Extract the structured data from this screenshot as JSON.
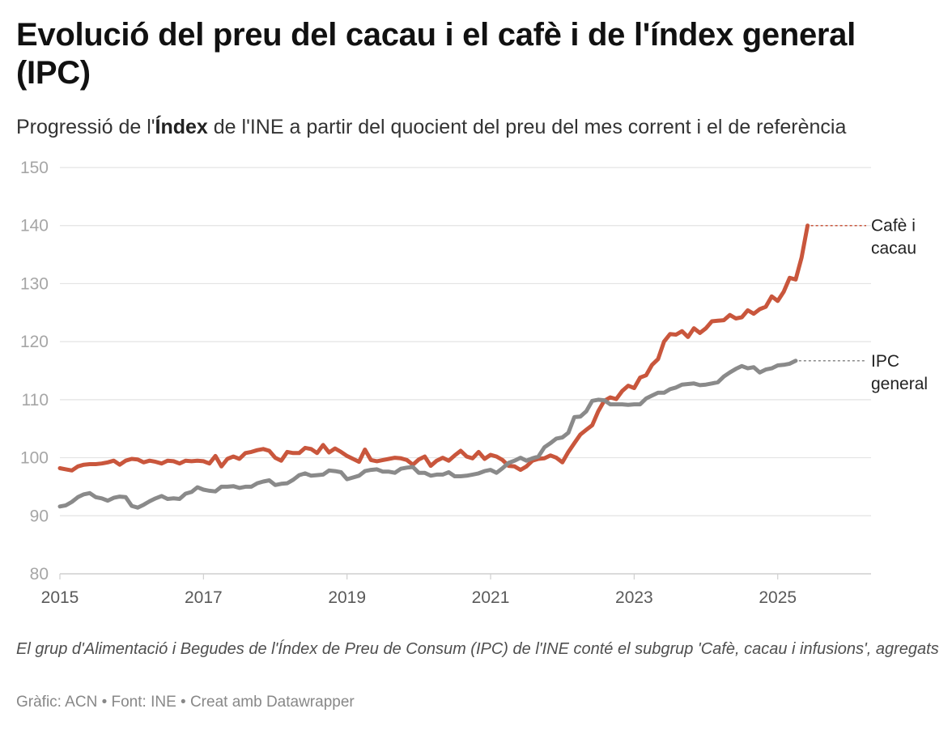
{
  "title": "Evolució del preu del cacau i el cafè i de l'índex general (IPC)",
  "subtitle": {
    "before": "Progressió de l'",
    "bold": "Índex",
    "after": " de l'INE a partir del quocient del preu del mes corrent i el de referència"
  },
  "note": "El grup d'Alimentació i Begudes de l'Índex de Preu de Consum (IPC) de l'INE conté el subgrup 'Cafè, cacau i infusions', agregats",
  "credits": "Gràfic: ACN • Font: INE • Creat amb Datawrapper",
  "chart_data": {
    "type": "line",
    "ylim": [
      80,
      150
    ],
    "yticks": [
      80,
      90,
      100,
      110,
      120,
      130,
      140,
      150
    ],
    "xlim": [
      2015,
      2026.3
    ],
    "xticks": [
      2015,
      2017,
      2019,
      2021,
      2023,
      2025
    ],
    "grid": true,
    "legend": "direct labels at line ends",
    "series": [
      {
        "name": "Cafè i cacau",
        "label_lines": [
          "Cafè i",
          "cacau"
        ],
        "color": "#c9563c",
        "start": 2015.0,
        "step": 0.08333,
        "values": [
          98.2,
          98.0,
          97.8,
          98.5,
          98.8,
          98.9,
          98.9,
          99.0,
          99.2,
          99.5,
          98.8,
          99.5,
          99.8,
          99.7,
          99.2,
          99.5,
          99.3,
          99.0,
          99.5,
          99.4,
          99.0,
          99.5,
          99.4,
          99.5,
          99.4,
          99.0,
          100.3,
          98.5,
          99.8,
          100.2,
          99.8,
          100.8,
          101.0,
          101.3,
          101.5,
          101.2,
          100.0,
          99.5,
          101.0,
          100.8,
          100.8,
          101.7,
          101.5,
          100.8,
          102.2,
          100.9,
          101.6,
          101.0,
          100.3,
          99.8,
          99.3,
          101.4,
          99.6,
          99.4,
          99.6,
          99.8,
          100.0,
          99.9,
          99.6,
          98.8,
          99.7,
          100.2,
          98.6,
          99.5,
          100.0,
          99.5,
          100.4,
          101.2,
          100.2,
          99.9,
          101.0,
          99.8,
          100.5,
          100.2,
          99.6,
          98.6,
          98.5,
          97.9,
          98.5,
          99.5,
          99.8,
          99.9,
          100.4,
          100.0,
          99.2,
          101.0,
          102.5,
          104.0,
          104.8,
          105.6,
          108.0,
          109.8,
          110.4,
          110.1,
          111.5,
          112.4,
          112.0,
          113.8,
          114.2,
          116.0,
          117.0,
          120.0,
          121.3,
          121.2,
          121.8,
          120.8,
          122.3,
          121.5,
          122.3,
          123.5,
          123.6,
          123.7,
          124.6,
          124.0,
          124.2,
          125.4,
          124.8,
          125.6,
          126.0,
          127.8,
          127.0,
          128.6,
          131.0,
          130.7,
          134.5,
          140.0
        ]
      },
      {
        "name": "IPC general",
        "label_lines": [
          "IPC",
          "general"
        ],
        "color": "#8a8a8a",
        "start": 2015.0,
        "step": 0.08333,
        "values": [
          91.6,
          91.8,
          92.4,
          93.2,
          93.7,
          93.9,
          93.2,
          93.0,
          92.6,
          93.1,
          93.3,
          93.2,
          91.7,
          91.4,
          91.9,
          92.5,
          93.0,
          93.4,
          92.9,
          93.0,
          92.9,
          93.8,
          94.1,
          94.9,
          94.5,
          94.3,
          94.2,
          95.0,
          95.0,
          95.1,
          94.8,
          95.0,
          95.0,
          95.6,
          95.9,
          96.1,
          95.3,
          95.5,
          95.6,
          96.2,
          97.0,
          97.3,
          96.9,
          97.0,
          97.1,
          97.8,
          97.7,
          97.5,
          96.3,
          96.6,
          96.9,
          97.7,
          97.9,
          98.0,
          97.6,
          97.6,
          97.4,
          98.1,
          98.3,
          98.4,
          97.4,
          97.4,
          96.9,
          97.1,
          97.1,
          97.5,
          96.8,
          96.8,
          96.9,
          97.1,
          97.3,
          97.7,
          97.9,
          97.4,
          98.2,
          99.1,
          99.5,
          100.0,
          99.5,
          99.9,
          100.2,
          101.8,
          102.5,
          103.3,
          103.5,
          104.3,
          107.0,
          107.1,
          108.0,
          109.8,
          110.0,
          109.9,
          109.2,
          109.2,
          109.2,
          109.1,
          109.2,
          109.2,
          110.2,
          110.7,
          111.2,
          111.2,
          111.8,
          112.1,
          112.6,
          112.7,
          112.8,
          112.5,
          112.6,
          112.8,
          113.0,
          114.0,
          114.7,
          115.3,
          115.8,
          115.4,
          115.6,
          114.7,
          115.2,
          115.4,
          115.9,
          116.0,
          116.2,
          116.7
        ]
      }
    ]
  }
}
